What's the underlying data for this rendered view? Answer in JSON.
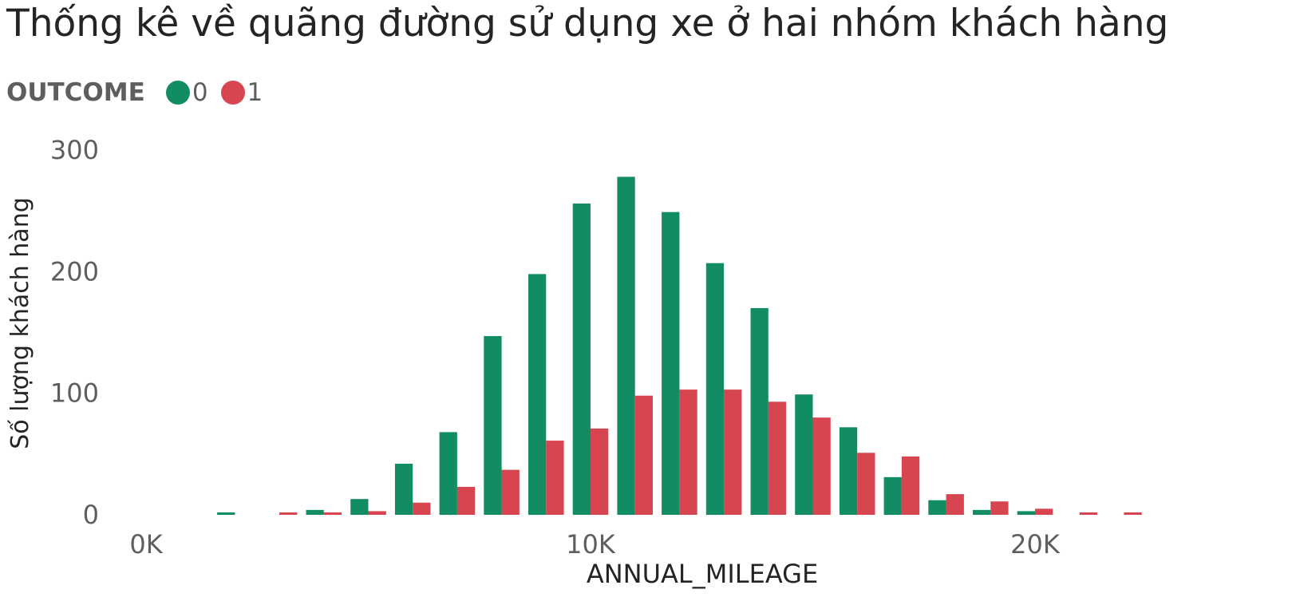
{
  "title": "Thống kê về quãng đường sử dụng xe ở hai nhóm khách hàng",
  "legend": {
    "title": "OUTCOME",
    "items": [
      {
        "label": "0",
        "color": "#118dff_placeholder"
      },
      {
        "label": "1",
        "color": "#d64550"
      }
    ]
  },
  "chart_data": {
    "type": "bar",
    "xlabel": "ANNUAL_MILEAGE",
    "ylabel": "Số lượng khách hàng",
    "ylim": [
      0,
      300
    ],
    "yticks": [
      0,
      100,
      200,
      300
    ],
    "xticks": [
      {
        "value": 0,
        "label": "0K"
      },
      {
        "value": 10000,
        "label": "10K"
      },
      {
        "value": 20000,
        "label": "20K"
      }
    ],
    "xlim": [
      0,
      25000
    ],
    "bin_width": 1000,
    "x": [
      2000,
      3000,
      4000,
      5000,
      6000,
      7000,
      8000,
      9000,
      10000,
      11000,
      12000,
      13000,
      14000,
      15000,
      16000,
      17000,
      18000,
      19000,
      20000,
      21000,
      22000
    ],
    "series": [
      {
        "name": "0",
        "color": "#118c63",
        "values": [
          1,
          0,
          4,
          13,
          42,
          68,
          147,
          198,
          256,
          278,
          249,
          207,
          170,
          99,
          72,
          31,
          12,
          4,
          3,
          0,
          0
        ]
      },
      {
        "name": "1",
        "color": "#d64550",
        "values": [
          0,
          1,
          2,
          3,
          10,
          23,
          37,
          61,
          71,
          98,
          103,
          103,
          93,
          80,
          51,
          48,
          17,
          11,
          5,
          1,
          1
        ]
      }
    ],
    "grid": false,
    "legend_position": "top-left"
  }
}
